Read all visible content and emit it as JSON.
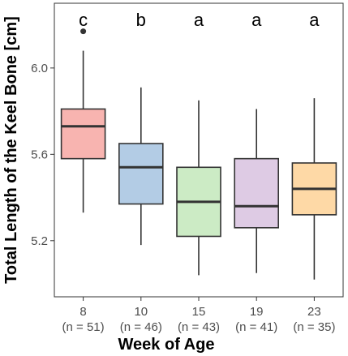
{
  "chart_data": {
    "type": "boxplot",
    "title": "",
    "xlabel": "Week of Age",
    "ylabel": "Total Length of the Keel Bone [cm]",
    "ylim": [
      4.94,
      6.3
    ],
    "yticks": [
      5.2,
      5.6,
      6.0
    ],
    "ytick_labels": [
      "5.2",
      "5.6",
      "6.0"
    ],
    "grid": false,
    "groups": [
      {
        "label": "8",
        "n_label": "(n = 51)",
        "sig": "c",
        "color": "#f8b4b0",
        "whisker_low": 5.33,
        "q1": 5.58,
        "median": 5.73,
        "q3": 5.81,
        "whisker_high": 6.08,
        "outliers": [
          6.17
        ]
      },
      {
        "label": "10",
        "n_label": "(n = 46)",
        "sig": "b",
        "color": "#b3cce5",
        "whisker_low": 5.18,
        "q1": 5.37,
        "median": 5.54,
        "q3": 5.65,
        "whisker_high": 5.91,
        "outliers": []
      },
      {
        "label": "15",
        "n_label": "(n = 43)",
        "sig": "a",
        "color": "#ccebc5",
        "whisker_low": 5.04,
        "q1": 5.22,
        "median": 5.38,
        "q3": 5.54,
        "whisker_high": 5.85,
        "outliers": []
      },
      {
        "label": "19",
        "n_label": "(n = 41)",
        "sig": "a",
        "color": "#decbe4",
        "whisker_low": 5.05,
        "q1": 5.26,
        "median": 5.36,
        "q3": 5.58,
        "whisker_high": 5.81,
        "outliers": []
      },
      {
        "label": "23",
        "n_label": "(n = 35)",
        "sig": "a",
        "color": "#fed9a6",
        "whisker_low": 5.02,
        "q1": 5.32,
        "median": 5.44,
        "q3": 5.56,
        "whisker_high": 5.86,
        "outliers": []
      }
    ]
  }
}
